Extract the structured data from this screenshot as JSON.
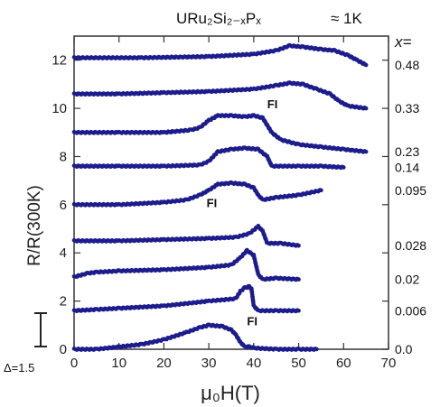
{
  "chart_data": {
    "type": "scatter",
    "title": "URu₂Si₂₋ₓPₓ",
    "temperature": "≈ 1K",
    "xlabel": "μ₀H(T)",
    "ylabel": "R/R(300K)",
    "legend_header": "x=",
    "xlim": [
      0,
      70
    ],
    "ylim": [
      0,
      13
    ],
    "xticks": [
      0,
      10,
      20,
      30,
      40,
      50,
      60,
      70
    ],
    "yticks": [
      0,
      2,
      4,
      6,
      8,
      10,
      12
    ],
    "offset_bar_label": "Δ=1.5",
    "annotations": [
      {
        "text": "FI",
        "x": 43,
        "y": 10.0
      },
      {
        "text": "FI",
        "x": 29.5,
        "y": 5.9
      },
      {
        "text": "FI",
        "x": 38.5,
        "y": 1.0
      }
    ],
    "color": "#1c1c8c",
    "series": [
      {
        "name": "0.48",
        "points": [
          [
            0,
            12.1
          ],
          [
            15,
            12.1
          ],
          [
            30,
            12.15
          ],
          [
            40,
            12.25
          ],
          [
            45,
            12.4
          ],
          [
            48,
            12.6
          ],
          [
            51,
            12.55
          ],
          [
            55,
            12.45
          ],
          [
            58,
            12.4
          ],
          [
            61,
            12.2
          ],
          [
            63,
            12.0
          ],
          [
            65,
            11.8
          ]
        ]
      },
      {
        "name": "0.33",
        "points": [
          [
            0,
            10.6
          ],
          [
            10,
            10.6
          ],
          [
            20,
            10.65
          ],
          [
            30,
            10.7
          ],
          [
            40,
            10.8
          ],
          [
            45,
            10.95
          ],
          [
            48,
            11.05
          ],
          [
            51,
            11.0
          ],
          [
            54,
            10.8
          ],
          [
            57,
            10.6
          ],
          [
            59,
            10.3
          ],
          [
            61,
            10.1
          ],
          [
            65,
            10.0
          ]
        ]
      },
      {
        "name": "0.23",
        "points": [
          [
            0,
            9.0
          ],
          [
            10,
            9.0
          ],
          [
            20,
            9.0
          ],
          [
            26,
            9.1
          ],
          [
            28,
            9.2
          ],
          [
            30,
            9.5
          ],
          [
            32,
            9.7
          ],
          [
            35,
            9.7
          ],
          [
            38,
            9.65
          ],
          [
            40,
            9.7
          ],
          [
            42,
            9.6
          ],
          [
            44,
            9.0
          ],
          [
            46,
            8.7
          ],
          [
            50,
            8.5
          ],
          [
            55,
            8.4
          ],
          [
            60,
            8.3
          ],
          [
            65,
            8.2
          ]
        ]
      },
      {
        "name": "0.14",
        "points": [
          [
            0,
            7.6
          ],
          [
            10,
            7.6
          ],
          [
            20,
            7.6
          ],
          [
            28,
            7.65
          ],
          [
            30,
            7.8
          ],
          [
            32,
            8.2
          ],
          [
            35,
            8.3
          ],
          [
            38,
            8.35
          ],
          [
            41,
            8.3
          ],
          [
            43,
            8.0
          ],
          [
            44,
            7.6
          ],
          [
            50,
            7.6
          ],
          [
            55,
            7.6
          ],
          [
            60,
            7.55
          ]
        ]
      },
      {
        "name": "0.095",
        "points": [
          [
            0,
            6.0
          ],
          [
            10,
            6.0
          ],
          [
            20,
            6.1
          ],
          [
            25,
            6.2
          ],
          [
            28,
            6.4
          ],
          [
            30,
            6.6
          ],
          [
            32,
            6.85
          ],
          [
            35,
            6.9
          ],
          [
            38,
            6.85
          ],
          [
            40,
            6.7
          ],
          [
            41,
            6.4
          ],
          [
            42,
            6.2
          ],
          [
            45,
            6.3
          ],
          [
            50,
            6.4
          ],
          [
            55,
            6.6
          ]
        ]
      },
      {
        "name": "0.028",
        "points": [
          [
            0,
            4.5
          ],
          [
            10,
            4.5
          ],
          [
            20,
            4.55
          ],
          [
            30,
            4.6
          ],
          [
            36,
            4.65
          ],
          [
            39,
            4.8
          ],
          [
            41,
            5.1
          ],
          [
            42,
            4.9
          ],
          [
            43,
            4.4
          ],
          [
            46,
            4.4
          ],
          [
            50,
            4.3
          ]
        ]
      },
      {
        "name": "0.02",
        "points": [
          [
            0,
            3.0
          ],
          [
            3,
            3.15
          ],
          [
            5,
            3.2
          ],
          [
            10,
            3.25
          ],
          [
            20,
            3.3
          ],
          [
            30,
            3.4
          ],
          [
            35,
            3.5
          ],
          [
            37,
            3.8
          ],
          [
            38.5,
            4.1
          ],
          [
            40,
            3.9
          ],
          [
            41,
            3.1
          ],
          [
            42,
            2.9
          ],
          [
            45,
            2.95
          ],
          [
            50,
            2.9
          ]
        ]
      },
      {
        "name": "0.006",
        "points": [
          [
            0,
            1.6
          ],
          [
            5,
            1.65
          ],
          [
            10,
            1.7
          ],
          [
            20,
            1.8
          ],
          [
            30,
            2.0
          ],
          [
            36,
            2.1
          ],
          [
            37,
            2.4
          ],
          [
            38,
            2.55
          ],
          [
            39,
            2.6
          ],
          [
            39.5,
            2.5
          ],
          [
            40,
            1.8
          ],
          [
            41,
            1.6
          ],
          [
            45,
            1.6
          ],
          [
            50,
            1.6
          ]
        ]
      },
      {
        "name": "0.0",
        "points": [
          [
            0,
            0.0
          ],
          [
            5,
            0.0
          ],
          [
            10,
            0.1
          ],
          [
            15,
            0.2
          ],
          [
            20,
            0.4
          ],
          [
            25,
            0.7
          ],
          [
            28,
            0.9
          ],
          [
            30,
            1.0
          ],
          [
            33,
            0.95
          ],
          [
            35,
            0.8
          ],
          [
            36,
            0.6
          ],
          [
            37,
            0.3
          ],
          [
            38,
            0.1
          ],
          [
            39,
            0.1
          ],
          [
            40,
            0.05
          ],
          [
            45,
            0.0
          ],
          [
            50,
            0.0
          ],
          [
            54,
            0.0
          ]
        ]
      }
    ]
  }
}
